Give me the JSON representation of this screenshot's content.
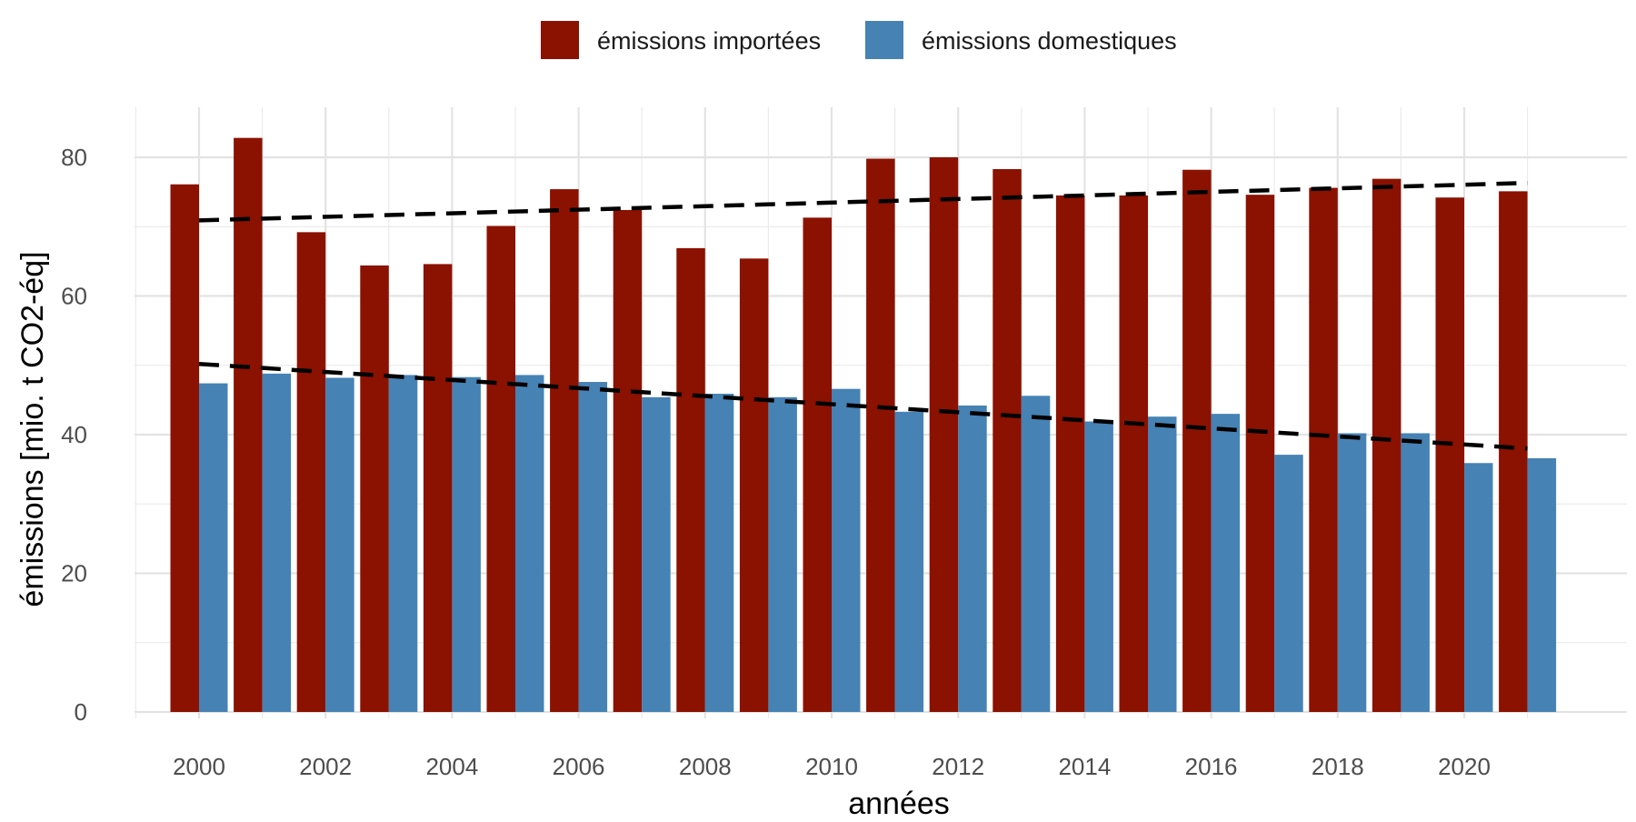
{
  "chart_data": {
    "type": "bar",
    "title": "",
    "xlabel": "années",
    "ylabel": "émissions [mio. t CO2-éq]",
    "ylim": [
      0,
      87
    ],
    "xlim": [
      1999,
      2022
    ],
    "yticks": [
      0,
      20,
      40,
      60,
      80
    ],
    "xticks": [
      2000,
      2002,
      2004,
      2006,
      2008,
      2010,
      2012,
      2014,
      2016,
      2018,
      2020
    ],
    "grid": true,
    "legend_position": "top",
    "categories": [
      2000,
      2001,
      2002,
      2003,
      2004,
      2005,
      2006,
      2007,
      2008,
      2009,
      2010,
      2011,
      2012,
      2013,
      2014,
      2015,
      2016,
      2017,
      2018,
      2019,
      2020,
      2021
    ],
    "series": [
      {
        "name": "émissions importées",
        "color": "#8B1100",
        "values": [
          76.1,
          82.8,
          69.2,
          64.4,
          64.6,
          70.1,
          75.4,
          72.4,
          66.9,
          65.4,
          71.3,
          79.8,
          80.0,
          78.3,
          74.5,
          74.5,
          78.2,
          74.6,
          75.6,
          76.9,
          74.2,
          75.1
        ],
        "trend": {
          "start": 70.9,
          "end": 76.3,
          "style": "dashed",
          "color": "#000000"
        }
      },
      {
        "name": "émissions domestiques",
        "color": "#4682B4",
        "values": [
          47.4,
          48.8,
          48.2,
          48.6,
          48.3,
          48.6,
          47.6,
          45.4,
          45.9,
          45.4,
          46.6,
          43.3,
          44.2,
          45.6,
          41.9,
          42.6,
          43.0,
          37.1,
          40.2,
          40.2,
          35.9,
          36.6
        ],
        "trend": {
          "start": 50.2,
          "end": 38.0,
          "style": "dashed",
          "color": "#000000"
        }
      }
    ]
  }
}
